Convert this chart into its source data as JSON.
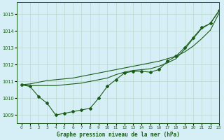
{
  "title": "Graphe pression niveau de la mer (hPa)",
  "background_color": "#d6eef5",
  "grid_color": "#b8d8cc",
  "line_color": "#1a5c1a",
  "xlim": [
    -0.5,
    23
  ],
  "ylim": [
    1008.5,
    1015.7
  ],
  "yticks": [
    1009,
    1010,
    1011,
    1012,
    1013,
    1014,
    1015
  ],
  "xticks": [
    0,
    1,
    2,
    3,
    4,
    5,
    6,
    7,
    8,
    9,
    10,
    11,
    12,
    13,
    14,
    15,
    16,
    17,
    18,
    19,
    20,
    21,
    22,
    23
  ],
  "hours": [
    0,
    1,
    2,
    3,
    4,
    5,
    6,
    7,
    8,
    9,
    10,
    11,
    12,
    13,
    14,
    15,
    16,
    17,
    18,
    19,
    20,
    21,
    22,
    23
  ],
  "y_zigzag": [
    1010.8,
    1010.7,
    1010.1,
    1009.7,
    1009.0,
    1009.1,
    1009.2,
    1009.3,
    1009.4,
    1010.0,
    1010.7,
    1011.1,
    1011.5,
    1011.6,
    1011.6,
    1011.55,
    1011.7,
    1012.2,
    1012.5,
    1013.0,
    1013.6,
    1014.2,
    1014.45,
    1015.2
  ],
  "y_upper_curve": [
    1010.8,
    1010.75,
    1010.75,
    1010.75,
    1010.75,
    1010.8,
    1010.85,
    1010.9,
    1011.0,
    1011.1,
    1011.2,
    1011.4,
    1011.55,
    1011.65,
    1011.7,
    1011.75,
    1011.9,
    1012.1,
    1012.35,
    1012.9,
    1013.55,
    1014.15,
    1014.45,
    1015.2
  ],
  "y_linear": [
    1010.8,
    1010.85,
    1010.95,
    1011.05,
    1011.1,
    1011.15,
    1011.2,
    1011.3,
    1011.4,
    1011.5,
    1011.6,
    1011.7,
    1011.8,
    1011.9,
    1012.0,
    1012.1,
    1012.2,
    1012.35,
    1012.5,
    1012.75,
    1013.1,
    1013.55,
    1014.05,
    1015.05
  ]
}
